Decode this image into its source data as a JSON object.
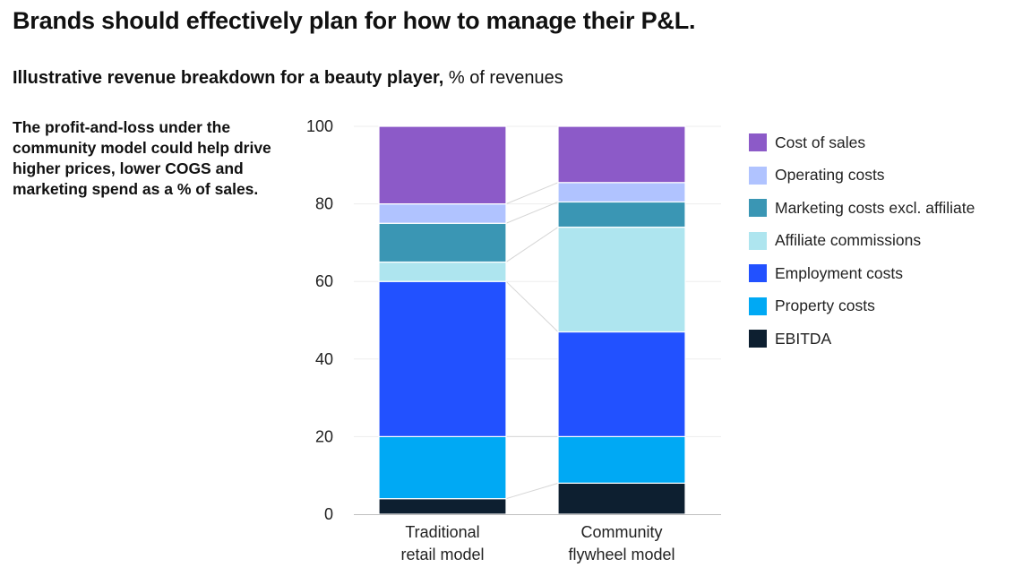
{
  "header": {
    "title": "Brands should effectively plan for how to manage their P&L.",
    "subtitle_bold": "Illustrative revenue breakdown for a beauty player,",
    "subtitle_unit": " % of revenues"
  },
  "side_note": "The profit-and-loss under the community model could help drive higher prices, lower COGS and marketing spend as a % of sales.",
  "chart_data": {
    "type": "bar",
    "stacked": true,
    "title": "Illustrative revenue breakdown for a beauty player",
    "ylabel": "% of revenues",
    "ylim": [
      0,
      100
    ],
    "yticks": [
      0,
      20,
      40,
      60,
      80,
      100
    ],
    "categories": [
      {
        "line1": "Traditional",
        "line2": "retail model"
      },
      {
        "line1": "Community",
        "line2": "flywheel model"
      }
    ],
    "series": [
      {
        "name": "EBITDA",
        "color": "#0d1f30",
        "values": [
          4,
          8
        ]
      },
      {
        "name": "Property costs",
        "color": "#00a9f4",
        "values": [
          16,
          12
        ]
      },
      {
        "name": "Employment costs",
        "color": "#2251ff",
        "values": [
          40,
          27
        ]
      },
      {
        "name": "Affiliate commissions",
        "color": "#aee5ef",
        "values": [
          5,
          27
        ]
      },
      {
        "name": "Marketing costs excl. affiliate",
        "color": "#3a96b4",
        "values": [
          10,
          6.5
        ]
      },
      {
        "name": "Operating costs",
        "color": "#b0c3ff",
        "values": [
          5,
          5
        ]
      },
      {
        "name": "Cost of sales",
        "color": "#8c5ac8",
        "values": [
          20,
          14.5
        ]
      }
    ],
    "legend": [
      "Cost of sales",
      "Operating costs",
      "Marketing costs excl. affiliate",
      "Affiliate commissions",
      "Employment costs",
      "Property costs",
      "EBITDA"
    ],
    "legend_position": "right"
  }
}
